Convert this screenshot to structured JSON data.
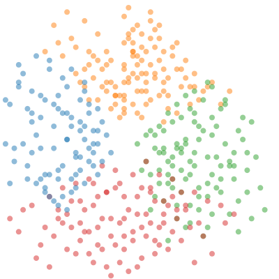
{
  "chart_data": {
    "type": "scatter",
    "title": "",
    "xlabel": "",
    "ylabel": "",
    "axes_visible": false,
    "grid": false,
    "legend": "none",
    "xlim": [
      -3.2,
      3.2
    ],
    "ylim": [
      -3.2,
      3.2
    ],
    "marker": {
      "alpha": 0.5,
      "shape": "circle"
    },
    "series": [
      {
        "color": "#ff7f0e",
        "x": [
          0.0,
          -0.3,
          0.4,
          -0.6,
          0.2,
          0.9,
          -0.9,
          0.5,
          -0.2,
          1.2,
          -1.1,
          0.7,
          0.1,
          -0.5,
          1.5,
          -1.4,
          0.3,
          0.8,
          -0.8,
          1.0,
          0.0,
          -0.1,
          0.6,
          -0.4,
          1.3,
          -1.2,
          0.2,
          0.9,
          -0.7,
          1.8,
          -1.6,
          0.4,
          0.0,
          -0.3,
          1.1,
          -0.9,
          0.6,
          -0.6,
          1.6,
          -1.3,
          0.1,
          0.3,
          -0.2,
          0.8,
          -1.0,
          1.4,
          0.5,
          -0.5,
          0.2,
          0.7,
          2.0,
          -1.8,
          0.9,
          -0.8,
          0.0,
          0.4,
          -0.4,
          1.2,
          0.3,
          0.0,
          -0.1,
          0.5,
          1.0,
          -0.7,
          0.2,
          0.6,
          1.7,
          -1.5,
          0.8,
          0.1,
          0.3,
          -0.2,
          2.2,
          1.3,
          0.4,
          0.0,
          -0.3,
          0.7,
          0.5,
          1.0,
          -0.9,
          0.2,
          0.9,
          1.5,
          0.1,
          0.6,
          0.3,
          -0.4,
          1.1,
          0.0,
          2.4,
          0.8,
          -0.6,
          0.4,
          0.2,
          1.4,
          -1.1,
          0.5,
          1.9,
          0.0,
          0.3,
          -0.2,
          0.7,
          1.2,
          0.1,
          0.6,
          -0.8,
          2.1,
          0.0,
          0.9,
          0.4,
          -0.4,
          1.6,
          0.2
        ],
        "y": [
          0.6,
          0.7,
          0.5,
          0.9,
          0.8,
          0.4,
          1.2,
          1.1,
          1.0,
          0.6,
          1.5,
          1.4,
          1.3,
          1.6,
          0.8,
          1.9,
          1.7,
          1.8,
          2.0,
          1.0,
          2.2,
          0.5,
          0.9,
          1.1,
          1.2,
          2.3,
          2.5,
          1.6,
          1.4,
          1.1,
          2.6,
          2.1,
          2.8,
          1.8,
          1.9,
          2.7,
          2.3,
          2.4,
          1.5,
          2.9,
          3.0,
          0.6,
          0.8,
          1.0,
          1.3,
          1.4,
          1.5,
          1.2,
          1.9,
          2.1,
          1.3,
          2.0,
          1.3,
          1.7,
          1.6,
          2.4,
          2.0,
          2.2,
          2.6,
          0.7,
          1.0,
          1.3,
          0.7,
          1.9,
          2.0,
          1.7,
          0.9,
          2.2,
          2.3,
          1.4,
          1.1,
          1.2,
          0.8,
          1.6,
          1.8,
          1.0,
          1.3,
          1.5,
          2.0,
          1.4,
          1.6,
          2.2,
          2.0,
          1.2,
          2.4,
          2.7,
          1.9,
          1.7,
          2.1,
          0.9,
          1.1,
          2.6,
          1.8,
          1.1,
          1.5,
          1.8,
          2.1,
          0.8,
          1.2,
          1.7,
          1.4,
          1.0,
          2.5,
          1.6,
          2.3,
          2.9,
          0.9,
          3.2,
          1.3,
          1.1,
          1.5,
          1.3,
          1.2,
          2.0
        ]
      },
      {
        "color": "#2ca02c",
        "x": [
          0.3,
          0.6,
          0.9,
          0.5,
          1.1,
          1.4,
          0.8,
          1.7,
          1.2,
          1.0,
          2.0,
          1.5,
          0.7,
          1.9,
          2.2,
          1.3,
          1.6,
          2.4,
          0.9,
          1.8,
          2.6,
          1.1,
          2.1,
          2.8,
          1.4,
          0.6,
          2.3,
          1.7,
          2.9,
          1.0,
          2.0,
          2.5,
          1.2,
          0.4,
          1.5,
          2.7,
          3.0,
          1.9,
          0.8,
          1.3,
          2.2,
          1.6,
          2.4,
          0.5,
          1.1,
          1.8,
          2.1,
          1.4,
          0.7,
          2.6,
          1.0,
          1.7,
          2.0,
          1.3,
          0.9,
          2.3,
          1.5,
          3.1,
          1.2,
          0.6,
          1.9,
          2.5,
          1.6,
          1.1,
          2.2,
          0.8,
          1.4,
          2.8,
          1.7,
          1.0,
          2.0,
          1.3,
          2.4,
          1.6,
          1.9,
          0.9,
          2.7,
          1.2,
          1.5,
          2.1,
          1.8,
          2.9,
          1.1,
          1.4,
          2.3,
          0.7,
          1.7,
          2.6,
          2.0,
          1.3,
          3.2,
          1.6,
          1.0,
          2.2,
          1.9,
          1.5,
          2.5,
          1.2,
          0.8,
          2.8
        ],
        "y": [
          -0.1,
          0.2,
          -0.3,
          -0.5,
          0.4,
          0.0,
          -0.7,
          0.3,
          -0.2,
          -1.0,
          0.5,
          -0.8,
          0.1,
          -0.4,
          0.7,
          -1.2,
          0.6,
          -0.6,
          -1.4,
          0.9,
          0.2,
          -0.9,
          -1.1,
          -0.3,
          1.0,
          -1.6,
          0.8,
          -1.3,
          0.4,
          -0.5,
          1.2,
          -0.9,
          -1.8,
          -0.7,
          -1.5,
          0.0,
          -0.4,
          -2.0,
          0.3,
          0.5,
          -0.6,
          1.1,
          -1.7,
          0.1,
          -1.1,
          -2.2,
          0.3,
          -0.1,
          -1.3,
          -1.4,
          0.6,
          0.0,
          -0.8,
          -0.3,
          -0.2,
          0.9,
          -1.9,
          -1.1,
          0.8,
          -0.8,
          1.3,
          -0.3,
          -0.6,
          -0.4,
          -1.2,
          -1.0,
          -0.9,
          -0.7,
          -1.6,
          -2.3,
          0.1,
          -0.2,
          -0.5,
          0.4,
          -1.0,
          0.2,
          0.5,
          -1.5,
          0.7,
          -0.4,
          0.2,
          -1.8,
          -0.6,
          -2.0,
          -0.1,
          -0.2,
          -1.1,
          -2.1,
          -1.7,
          -0.7,
          -1.6,
          -0.3,
          -0.8,
          -0.9,
          -1.3,
          -0.5,
          -0.6,
          -0.1,
          -0.3,
          -1.2
        ]
      },
      {
        "color": "#d62728",
        "x": [
          -0.2,
          0.2,
          -0.5,
          0.5,
          -0.1,
          -0.8,
          0.8,
          0.0,
          -0.4,
          0.4,
          -1.1,
          1.1,
          -0.7,
          0.7,
          0.1,
          -1.4,
          1.3,
          -0.3,
          0.3,
          -1.0,
          1.0,
          -0.6,
          0.6,
          -1.7,
          1.6,
          -1.3,
          0.0,
          -0.9,
          0.9,
          -2.1,
          1.9,
          -0.2,
          0.2,
          -1.2,
          1.2,
          -0.5,
          0.5,
          -1.5,
          1.4,
          -0.8,
          0.8,
          -0.1,
          -2.3,
          2.2,
          -1.0,
          1.1,
          -0.4,
          0.4,
          -1.8,
          1.7,
          -0.7,
          0.7,
          0.1,
          -1.3,
          1.3,
          -0.3,
          0.3,
          -2.6,
          2.5,
          -1.1,
          1.0,
          -0.6,
          0.6,
          -1.6,
          1.5,
          0.0,
          -0.9,
          0.9,
          -1.9,
          1.8,
          -0.2,
          0.3,
          -1.4,
          1.2,
          -0.5,
          0.5,
          -2.0,
          2.0,
          -0.8,
          0.8,
          -1.2,
          1.1,
          -0.3,
          0.2,
          -1.7,
          1.6,
          -1.0,
          0.9,
          -0.6,
          0.7,
          -2.4,
          2.3,
          -0.1,
          0.4,
          -1.5,
          1.4,
          -0.4,
          -0.7,
          0.6,
          0.0
        ],
        "y": [
          -0.7,
          -0.8,
          -0.6,
          -0.5,
          -1.0,
          -0.9,
          -0.8,
          -1.3,
          -1.2,
          -1.1,
          -1.0,
          -0.9,
          -1.5,
          -1.4,
          -1.6,
          -1.1,
          -1.2,
          -1.8,
          -1.7,
          -1.4,
          -1.5,
          -2.0,
          -1.9,
          -1.3,
          -1.2,
          -1.7,
          -2.2,
          -2.1,
          -1.9,
          -1.5,
          -1.4,
          -2.4,
          -2.3,
          -2.0,
          -1.8,
          -2.5,
          -2.2,
          -1.8,
          -1.6,
          -2.6,
          -2.4,
          -2.8,
          -1.6,
          -1.5,
          -2.3,
          -2.1,
          -2.9,
          -2.7,
          -2.0,
          -1.9,
          -2.8,
          -2.6,
          -3.0,
          -2.5,
          -2.3,
          -3.1,
          -2.9,
          -1.8,
          -1.7,
          -2.6,
          -2.5,
          -1.3,
          -1.2,
          -2.2,
          -2.0,
          -2.5,
          -1.6,
          -1.4,
          -2.4,
          -2.2,
          -1.1,
          -1.3,
          -1.9,
          -1.6,
          -1.8,
          -1.7,
          -2.7,
          -2.6,
          -2.1,
          -2.0,
          -1.4,
          -1.3,
          -2.2,
          -2.1,
          -2.9,
          -2.8,
          -1.9,
          -1.7,
          -2.4,
          -2.3,
          -2.1,
          -1.9,
          -1.9,
          -2.0,
          -1.6,
          -1.5,
          -1.2,
          -1.0,
          -1.1,
          -1.8
        ]
      },
      {
        "color": "#1f77b4",
        "x": [
          -0.4,
          -0.6,
          -0.3,
          -0.9,
          -0.7,
          -0.5,
          -1.2,
          -1.0,
          -0.8,
          -1.5,
          -1.3,
          -1.1,
          -0.6,
          -1.8,
          -1.6,
          -1.4,
          -0.9,
          -2.1,
          -1.9,
          -1.7,
          -1.2,
          -0.5,
          -2.4,
          -2.2,
          -2.0,
          -1.5,
          -1.0,
          -2.7,
          -2.5,
          -1.8,
          -1.3,
          -0.8,
          -3.0,
          -2.3,
          -1.6,
          -1.1,
          -0.7,
          -2.8,
          -2.1,
          -1.4,
          -0.9,
          -1.9,
          -1.2,
          -2.6,
          -1.7,
          -1.0,
          -2.2,
          -1.5,
          -0.6,
          -2.9,
          -2.0,
          -1.3,
          -0.8,
          -1.8,
          -1.1,
          -2.4,
          -1.6,
          -0.9,
          -2.7,
          -1.4,
          -2.1,
          -1.2,
          -0.7,
          -1.9,
          -1.0,
          -2.5,
          -1.7,
          -1.3,
          -2.3,
          -1.5,
          -0.8,
          -2.0,
          -1.1,
          -1.6,
          -2.6,
          -1.8,
          -1.2,
          -0.6,
          -2.2,
          -1.4,
          -0.9,
          -1.7,
          -2.8,
          -1.9,
          -1.3,
          -0.7,
          -2.4,
          -1.5,
          -1.0,
          -2.1
        ],
        "y": [
          0.1,
          -0.1,
          -0.3,
          0.3,
          0.2,
          -0.5,
          0.5,
          0.4,
          -0.2,
          0.7,
          0.6,
          -0.4,
          -0.8,
          0.9,
          0.8,
          -0.6,
          0.0,
          1.1,
          1.0,
          -0.8,
          0.3,
          0.4,
          1.3,
          0.7,
          -1.0,
          1.0,
          -0.7,
          0.9,
          -0.2,
          -1.2,
          1.2,
          0.6,
          0.2,
          1.5,
          -1.4,
          -0.3,
          -0.1,
          -0.4,
          -0.3,
          1.4,
          1.1,
          0.5,
          -0.9,
          -1.0,
          1.6,
          0.9,
          -0.6,
          -0.7,
          0.7,
          0.5,
          0.1,
          0.0,
          -0.5,
          -1.1,
          -1.1,
          1.7,
          -0.2,
          1.3,
          -0.1,
          -1.3,
          0.4,
          1.6,
          -0.6,
          -0.9,
          -0.4,
          -0.5,
          1.8,
          -1.6,
          -0.1,
          -1.5,
          0.8,
          1.9,
          -0.8,
          0.3,
          0.8,
          -0.8,
          -1.2,
          0.2,
          -0.9,
          0.6,
          -1.0,
          -1.3,
          0.1,
          -0.2,
          0.0,
          -0.3,
          1.2,
          -0.9,
          0.2,
          0.6
        ]
      }
    ]
  }
}
